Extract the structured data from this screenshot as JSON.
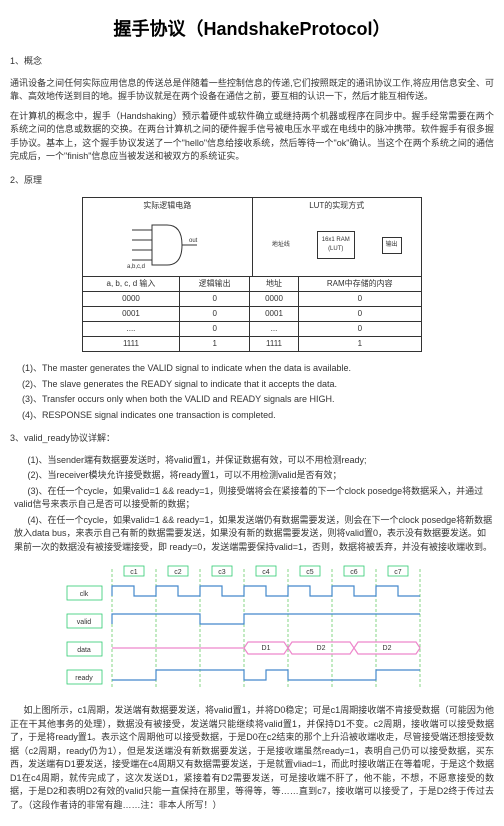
{
  "title": "握手协议（HandshakeProtocol）",
  "section1": {
    "heading": "1、概念",
    "p1": "通讯设备之间任何实际应用信息的传送总是伴随着一些控制信息的传递,它们按照既定的通讯协议工作,将应用信息安全、可靠、高效地传送到目的地。握手协议就是在两个设备在通信之前，要互相的认识一下，然后才能互相传送。",
    "p2": "在计算机的概念中，握手（Handshaking）预示着硬件或软件确立或继持两个机器或程序在同步中。握手经常需要在两个系统之间的信息或数据的交换。在两台计算机之间的硬件握手信号被电压水平或在电线中的脉冲携带。软件握手有很多握手协议。基本上，这个握手协议发送了一个\"hello\"信息给接收系统，然后等待一个\"ok\"确认。当这个在两个系统之间的通信完成后，一个\"finish\"信息应当被发送和被双方的系统证实。"
  },
  "section2": {
    "heading": "2、原理",
    "diagram_labels": {
      "left_title": "实际逻辑电路",
      "right_title": "LUT的实现方式",
      "inputs": "a,b,c,d",
      "output": "out",
      "mid_label": "地址线",
      "ram": "16x1 RAM\n(LUT)",
      "out2": "输出"
    },
    "table": {
      "headers": [
        "a, b, c, d 输入",
        "逻辑输出",
        "地址",
        "RAM中存储的内容"
      ],
      "rows": [
        [
          "0000",
          "0",
          "0000",
          "0"
        ],
        [
          "0001",
          "0",
          "0001",
          "0"
        ],
        [
          "....",
          "0",
          "...",
          "0"
        ],
        [
          "1111",
          "1",
          "1111",
          "1"
        ]
      ]
    },
    "items": [
      "(1)、The master generates the VALID signal to indicate when the data is available.",
      "(2)、The slave generates the READY signal to indicate that it accepts the data.",
      "(3)、Transfer occurs only when both the VALID and READY signals are HIGH.",
      "(4)、RESPONSE signal indicates one transaction is completed."
    ]
  },
  "section3": {
    "heading": "3、valid_ready协议详解：",
    "items": [
      "(1)、当sender端有数据要发送时，将valid置1，并保证数据有效，可以不用检测ready;",
      "(2)、当receiver模块允许接受数据，将ready置1，可以不用检测valid是否有效；",
      "(3)、在任一个cycle，如果valid=1 && ready=1，则接受端将会在紧接着的下一个clock posedge将数据采入，并通过valid信号来表示自己是否可以接受新的数据；",
      "(4)、在任一个cycle，如果valid=1 && ready=1，如果发送端仍有数据需要发送，则会在下一个clock posedge将新数据放入data bus，来表示自己有新的数据需要发送，如果没有新的数据需要发送，则将valid置0，表示没有数据要发送。如果前一次的数据没有被接受端接受，即 ready=0，发送端需要保持valid=1，否则，数据将被丢弃，并没有被接收端收到。"
    ],
    "timing": {
      "clk_labels": [
        "c1",
        "c2",
        "c3",
        "c4",
        "c5",
        "c6",
        "c7"
      ],
      "signals": [
        "clk",
        "valid",
        "data",
        "ready"
      ],
      "data_values": [
        "D1",
        "D2",
        "D2"
      ],
      "colors": {
        "grid": "#2ecc71",
        "wave_blue": "#4488cc",
        "wave_pink": "#ee88cc",
        "dash": "#66cc66"
      }
    },
    "footer": "如上图所示，c1周期，发送端有数据要发送，将valid置1，并将D0稳定；可是c1周期接收端不肯接受数据（可能因为他正在干其他事务的处理），数据没有被接受，发送端只能继续将valid置1，并保持D1不变。c2周期，接收端可以接受数据了，于是将ready置1。表示这个周期他可以接受数据，于是D0在c2结束的那个上升沿被收端收走，尽管接受端还想接受数据（c2周期，ready仍为1），但是发送端没有新数据要发送，于是接收端虽然ready=1，表明自己仍可以接受数据，买东西，发送端有D1要发送，接受端在c4周期又有数据需要发送，于是就置vliad=1，而此时接收端正在等着呢，于是这个数据D1在c4周期，就传完成了，这次发送D1，紧接着有D2需要发送，可是接收端不肝了，他不能，不想，不愿意接受的数据，于是D2和表明D2有效的valid只能一直保持在那里，等得等，等……直到c7，接收端可以接受了，于是D2终于传过去了。（这段作者诗的非常有趣……注：非本人所写！）"
  }
}
